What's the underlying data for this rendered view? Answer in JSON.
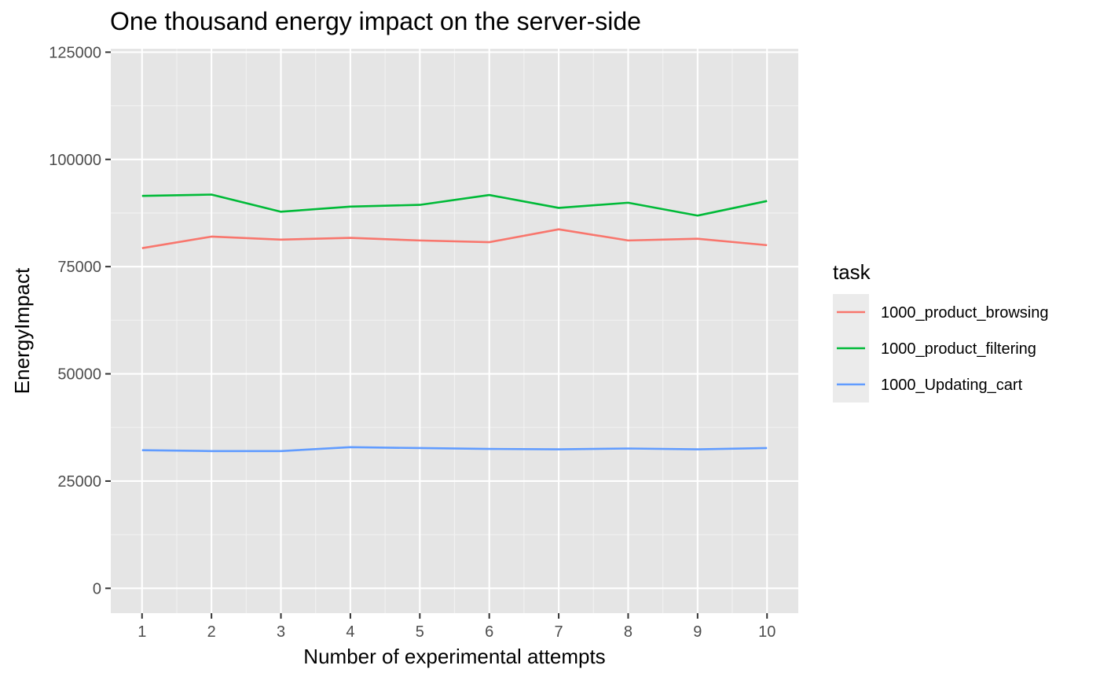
{
  "chart_data": {
    "type": "line",
    "title": "One thousand energy impact on the server-side",
    "xlabel": "Number of experimental attempts",
    "ylabel": "EnergyImpact",
    "x": [
      1,
      2,
      3,
      4,
      5,
      6,
      7,
      8,
      9,
      10
    ],
    "xticks": [
      "1",
      "2",
      "3",
      "4",
      "5",
      "6",
      "7",
      "8",
      "9",
      "10"
    ],
    "yticks": [
      {
        "value": 0,
        "label": "0"
      },
      {
        "value": 25000,
        "label": "25000"
      },
      {
        "value": 50000,
        "label": "50000"
      },
      {
        "value": 75000,
        "label": "75000"
      },
      {
        "value": 100000,
        "label": "100000"
      },
      {
        "value": 125000,
        "label": "125000"
      }
    ],
    "xlim": [
      0.55,
      10.45
    ],
    "ylim": [
      -5800,
      125800
    ],
    "grid": true,
    "legend": {
      "title": "task",
      "position": "right"
    },
    "series": [
      {
        "name": "1000_product_browsing",
        "color": "#f8766d",
        "values": [
          79300,
          82000,
          81300,
          81700,
          81100,
          80700,
          83700,
          81100,
          81500,
          80000
        ]
      },
      {
        "name": "1000_product_filtering",
        "color": "#00ba38",
        "values": [
          91500,
          91800,
          87800,
          89000,
          89400,
          91700,
          88700,
          89900,
          86900,
          90300
        ]
      },
      {
        "name": "1000_Updating_cart",
        "color": "#619cff",
        "values": [
          32200,
          32000,
          32000,
          32900,
          32700,
          32500,
          32400,
          32600,
          32400,
          32700
        ]
      }
    ]
  }
}
